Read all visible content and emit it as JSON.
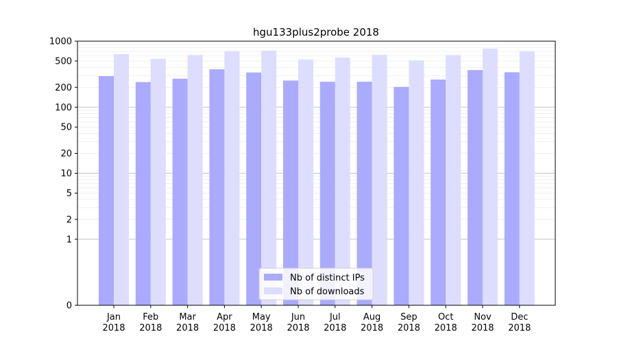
{
  "chart_data": {
    "type": "bar",
    "title": "hgu133plus2probe 2018",
    "xlabel": "",
    "ylabel": "",
    "yscale": "symlog",
    "ylim": [
      0,
      1000
    ],
    "yticks": [
      0,
      1,
      2,
      5,
      10,
      20,
      50,
      100,
      200,
      500,
      1000
    ],
    "ytick_labels": [
      "0",
      "1",
      "2",
      "5",
      "10",
      "20",
      "50",
      "100",
      "200",
      "500",
      "1000"
    ],
    "grid": true,
    "legend_position": "bottom-center",
    "categories": [
      [
        "Jan",
        "2018"
      ],
      [
        "Feb",
        "2018"
      ],
      [
        "Mar",
        "2018"
      ],
      [
        "Apr",
        "2018"
      ],
      [
        "May",
        "2018"
      ],
      [
        "Jun",
        "2018"
      ],
      [
        "Jul",
        "2018"
      ],
      [
        "Aug",
        "2018"
      ],
      [
        "Sep",
        "2018"
      ],
      [
        "Oct",
        "2018"
      ],
      [
        "Nov",
        "2018"
      ],
      [
        "Dec",
        "2018"
      ]
    ],
    "series": [
      {
        "name": "Nb of distinct IPs",
        "color": "#aaaaff",
        "values": [
          295,
          240,
          270,
          375,
          335,
          253,
          243,
          243,
          203,
          262,
          365,
          338
        ]
      },
      {
        "name": "Nb of downloads",
        "color": "#ddddff",
        "values": [
          635,
          540,
          615,
          705,
          720,
          530,
          565,
          620,
          510,
          615,
          770,
          705
        ]
      }
    ]
  }
}
